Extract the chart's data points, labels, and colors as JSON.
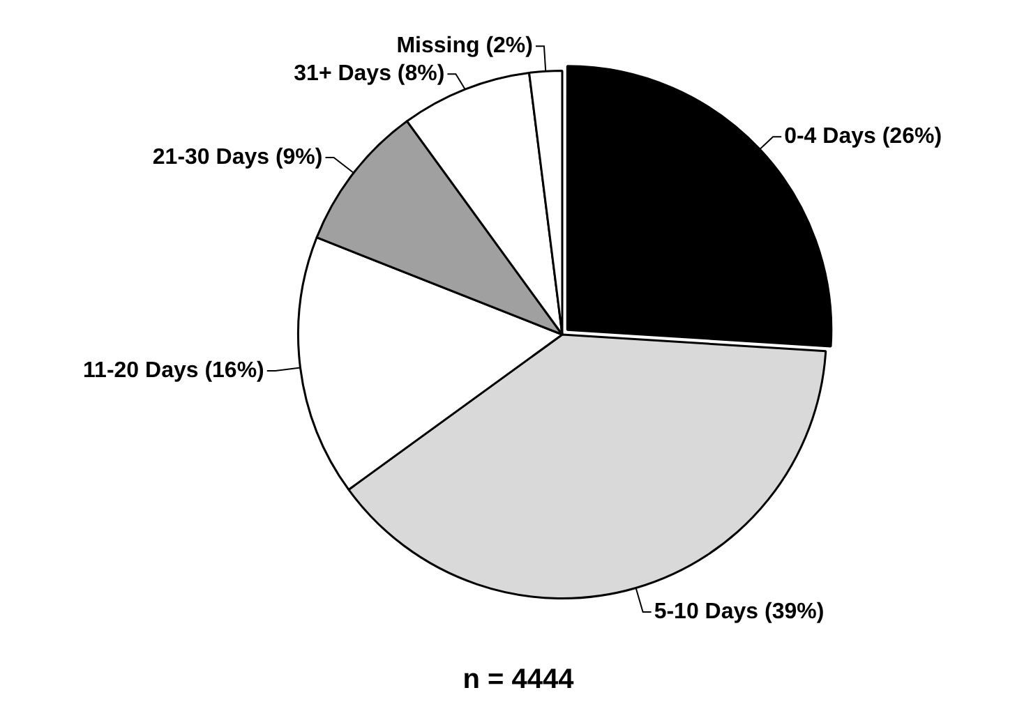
{
  "chart_data": {
    "type": "pie",
    "categories": [
      "0-4 Days",
      "5-10 Days",
      "11-20 Days",
      "21-30 Days",
      "31+ Days",
      "Missing"
    ],
    "values": [
      26,
      39,
      16,
      9,
      8,
      2
    ],
    "value_labels": [
      "(26%)",
      "(39%)",
      "(16%)",
      "(9%)",
      "(8%)",
      "(2%)"
    ],
    "colors": [
      "#000000",
      "#d9d9d9",
      "#ffffff",
      "#a0a0a0",
      "#ffffff",
      "#ffffff"
    ],
    "annotations": [
      "n = 4444"
    ],
    "legend": false
  }
}
